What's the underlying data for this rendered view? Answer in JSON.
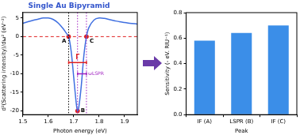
{
  "chart_data": [
    {
      "type": "line",
      "title": "Single Au Bipyramid",
      "x_label": "Photon energy (eV)",
      "y_label": "d²(Scattering intensity)/dω² (eV⁻²)",
      "x": [
        1.5,
        1.52,
        1.54,
        1.56,
        1.58,
        1.6,
        1.62,
        1.64,
        1.66,
        1.67,
        1.68,
        1.69,
        1.7,
        1.71,
        1.715,
        1.72,
        1.73,
        1.74,
        1.75,
        1.76,
        1.78,
        1.8,
        1.82,
        1.84,
        1.86,
        1.88,
        1.9,
        1.92,
        1.95
      ],
      "values": [
        3.6,
        4.0,
        4.4,
        4.7,
        5.0,
        5.0,
        4.6,
        3.6,
        2.0,
        1.0,
        0,
        -4,
        -11,
        -18,
        -20,
        -19,
        -13,
        -5,
        0,
        2.5,
        4.5,
        5.0,
        4.9,
        4.6,
        4.3,
        4.0,
        3.8,
        3.6,
        3.4
      ],
      "color": "#3f6fe0",
      "xlim": [
        1.5,
        1.95
      ],
      "xticks": [
        1.5,
        1.6,
        1.7,
        1.8,
        1.9
      ],
      "ylim": [
        -21,
        6.5
      ],
      "yticks": [
        -20,
        -15,
        -10,
        -5,
        0,
        5
      ],
      "grid": false,
      "points": [
        {
          "label": "A",
          "x": 1.68,
          "y": 0,
          "color": "#e02020"
        },
        {
          "label": "B",
          "x": 1.715,
          "y": -20,
          "color": "#e02020"
        },
        {
          "label": "C",
          "x": 1.75,
          "y": 0,
          "color": "#e02020"
        }
      ],
      "hlines": [
        {
          "y": 0,
          "color": "#e02020",
          "line_style": "dashed"
        }
      ],
      "vlines": [
        {
          "x": 1.68,
          "color": "#000000",
          "line_style": "dotted"
        },
        {
          "x": 1.715,
          "color": "#a020c0",
          "line_style": "dotted"
        },
        {
          "x": 1.75,
          "color": "#a020c0",
          "line_style": "dotted"
        }
      ],
      "annotations": [
        {
          "text": "Γ",
          "x": [
            1.68,
            1.75
          ],
          "y": -7,
          "color": "#e02020"
        },
        {
          "text": "ωLSPR",
          "x": [
            1.715,
            1.75
          ],
          "y": -10,
          "color": "#a020c0"
        }
      ]
    },
    {
      "type": "bar",
      "x_label": "Peak",
      "y_label": "Sensitivity (- eV. RIU⁻¹)",
      "categories": [
        "IF (A)",
        "LSPR (B)",
        "IF (C)"
      ],
      "values": [
        0.58,
        0.64,
        0.7
      ],
      "color": "#3b8ee8",
      "ylim": [
        0,
        0.8
      ],
      "yticks": [
        {
          "value": 0,
          "label": "0.0"
        },
        0.2,
        0.4,
        0.6,
        0.8
      ],
      "grid": false
    }
  ]
}
